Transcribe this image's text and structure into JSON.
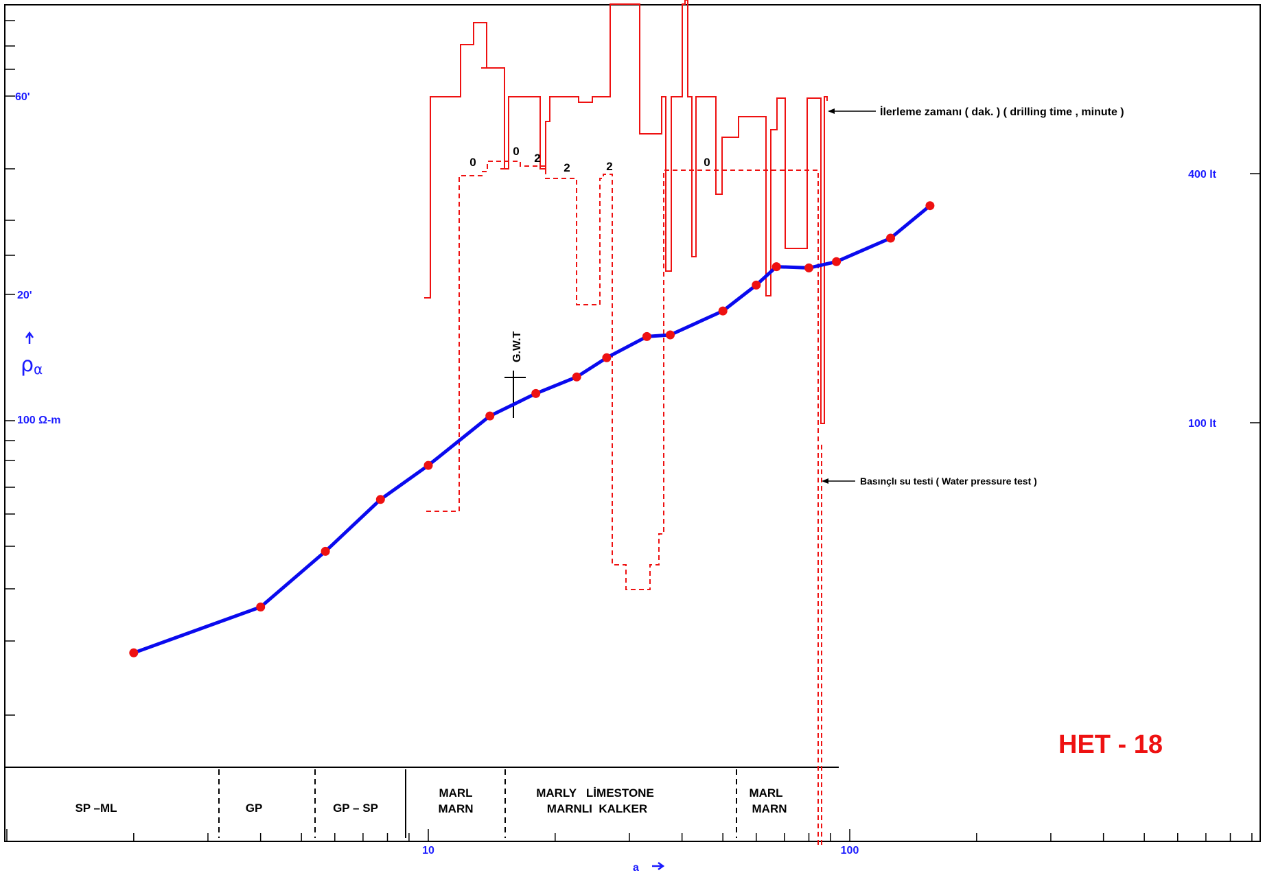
{
  "chart_data": {
    "type": "line",
    "title": "HET - 18",
    "xlabel": "a",
    "ylabel_symbol": "ρ",
    "ylabel_subscript": "α",
    "x_scale": "log",
    "x_ticklabels": [
      "10",
      "100"
    ],
    "y_left_ticklabels": [
      "60'",
      "20'",
      "100 Ω-m"
    ],
    "y_right_ticklabels": [
      "400 lt",
      "100 lt"
    ],
    "series": [
      {
        "values": [
          {
            "x": 2.0,
            "y": 38
          },
          {
            "x": 4.0,
            "y": 46
          },
          {
            "x": 5.7,
            "y": 58
          },
          {
            "x": 7.7,
            "y": 72
          },
          {
            "x": 10.0,
            "y": 83
          },
          {
            "x": 14.0,
            "y": 102
          },
          {
            "x": 18.0,
            "y": 112
          },
          {
            "x": 22.5,
            "y": 120
          },
          {
            "x": 26.5,
            "y": 130
          },
          {
            "x": 33.0,
            "y": 142
          },
          {
            "x": 37.5,
            "y": 143
          },
          {
            "x": 50.0,
            "y": 158
          },
          {
            "x": 60.0,
            "y": 176
          },
          {
            "x": 67.0,
            "y": 190
          },
          {
            "x": 80.0,
            "y": 189
          },
          {
            "x": 93.0,
            "y": 194
          },
          {
            "x": 125.0,
            "y": 214
          },
          {
            "x": 155.0,
            "y": 245
          }
        ]
      }
    ],
    "annotations": {
      "drilling_time": "İlerleme zamanı ( dak. ) ( drilling time , minute )",
      "water_test": "Basınçlı su testi  ( Water pressure test )",
      "gwt": "G.W.T",
      "small_numbers": [
        "0",
        "0",
        "2",
        "2",
        "2",
        "0"
      ]
    },
    "lithology": [
      {
        "l1": "SP –ML",
        "l2": ""
      },
      {
        "l1": "GP",
        "l2": ""
      },
      {
        "l1": "GP – SP",
        "l2": ""
      },
      {
        "l1": "MARL",
        "l2": "MARN"
      },
      {
        "l1": "MARLY   LİMESTONE",
        "l2": "MARNLI  KALKER"
      },
      {
        "l1": "MARL",
        "l2": "MARN"
      }
    ],
    "colors": {
      "apparent_resistivity": "#0a0aee",
      "points": "#ee1111",
      "drilling_time": "#ee1111",
      "axis_labels": "#1a1aff"
    },
    "grid": false
  }
}
